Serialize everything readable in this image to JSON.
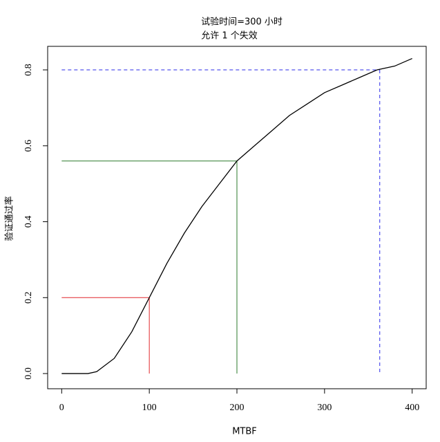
{
  "chart_data": {
    "type": "line",
    "title": [
      "试验时间=300 小时",
      "允许 1 个失效"
    ],
    "x_label": "MTBF",
    "y_label": "验证通过率",
    "x": [
      0,
      20,
      30,
      40,
      60,
      80,
      100,
      120,
      140,
      160,
      180,
      200,
      220,
      240,
      260,
      280,
      300,
      320,
      340,
      360,
      380,
      400
    ],
    "series": [
      {
        "color": "#000000",
        "values": [
          0,
          0,
          0,
          0.005,
          0.04,
          0.11,
          0.2,
          0.29,
          0.37,
          0.44,
          0.5,
          0.56,
          0.6,
          0.64,
          0.68,
          0.71,
          0.74,
          0.76,
          0.78,
          0.8,
          0.81,
          0.83
        ]
      }
    ],
    "reference_lines": [
      {
        "x": 100,
        "y": 0.2,
        "color": "#e0262a",
        "dashed": false
      },
      {
        "x": 200,
        "y": 0.56,
        "color": "#2a7a2a",
        "dashed": false
      },
      {
        "x": 363,
        "y": 0.8,
        "color": "#2a2ae8",
        "dashed": true
      }
    ],
    "xlim": [
      -16,
      416
    ],
    "ylim": [
      -0.04,
      0.862
    ],
    "xticks": [
      0,
      100,
      200,
      300,
      400
    ],
    "yticks": [
      {
        "value": 0,
        "label": "0.0"
      },
      {
        "value": 0.2,
        "label": "0.2"
      },
      {
        "value": 0.4,
        "label": "0.4"
      },
      {
        "value": 0.6,
        "label": "0.6"
      },
      {
        "value": 0.8,
        "label": "0.8"
      }
    ]
  }
}
